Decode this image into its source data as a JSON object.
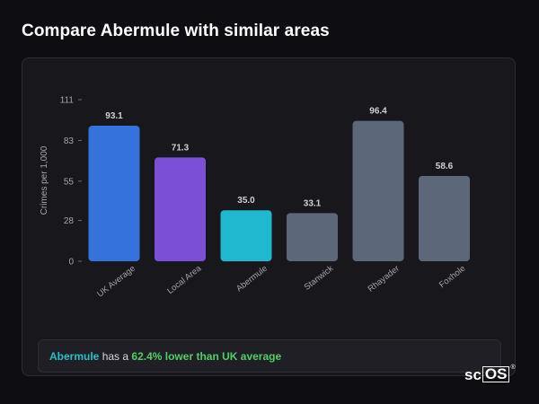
{
  "page": {
    "title": "Compare Abermule with similar areas"
  },
  "chart_data": {
    "type": "bar",
    "ylabel": "Crimes per 1,000",
    "xlabel": "",
    "ylim": [
      0,
      111
    ],
    "yticks": [
      0,
      28,
      55,
      83,
      111
    ],
    "categories": [
      "UK Average",
      "Local Area",
      "Abermule",
      "Stanwick",
      "Rhayader",
      "Foxhole"
    ],
    "values": [
      93.1,
      71.3,
      35.0,
      33.1,
      96.4,
      58.6
    ],
    "value_labels": [
      "93.1",
      "71.3",
      "35.0",
      "33.1",
      "96.4",
      "58.6"
    ],
    "colors": [
      "#3572db",
      "#7b4fd6",
      "#20b8cf",
      "#5c677a",
      "#5c677a",
      "#5c677a"
    ],
    "grid": false
  },
  "summary": {
    "area": "Abermule",
    "text": "has a",
    "difference": "62.4% lower than UK average"
  },
  "brand": {
    "logo_prefix": "sc",
    "logo_box": "OS",
    "logo_mark": "®"
  }
}
